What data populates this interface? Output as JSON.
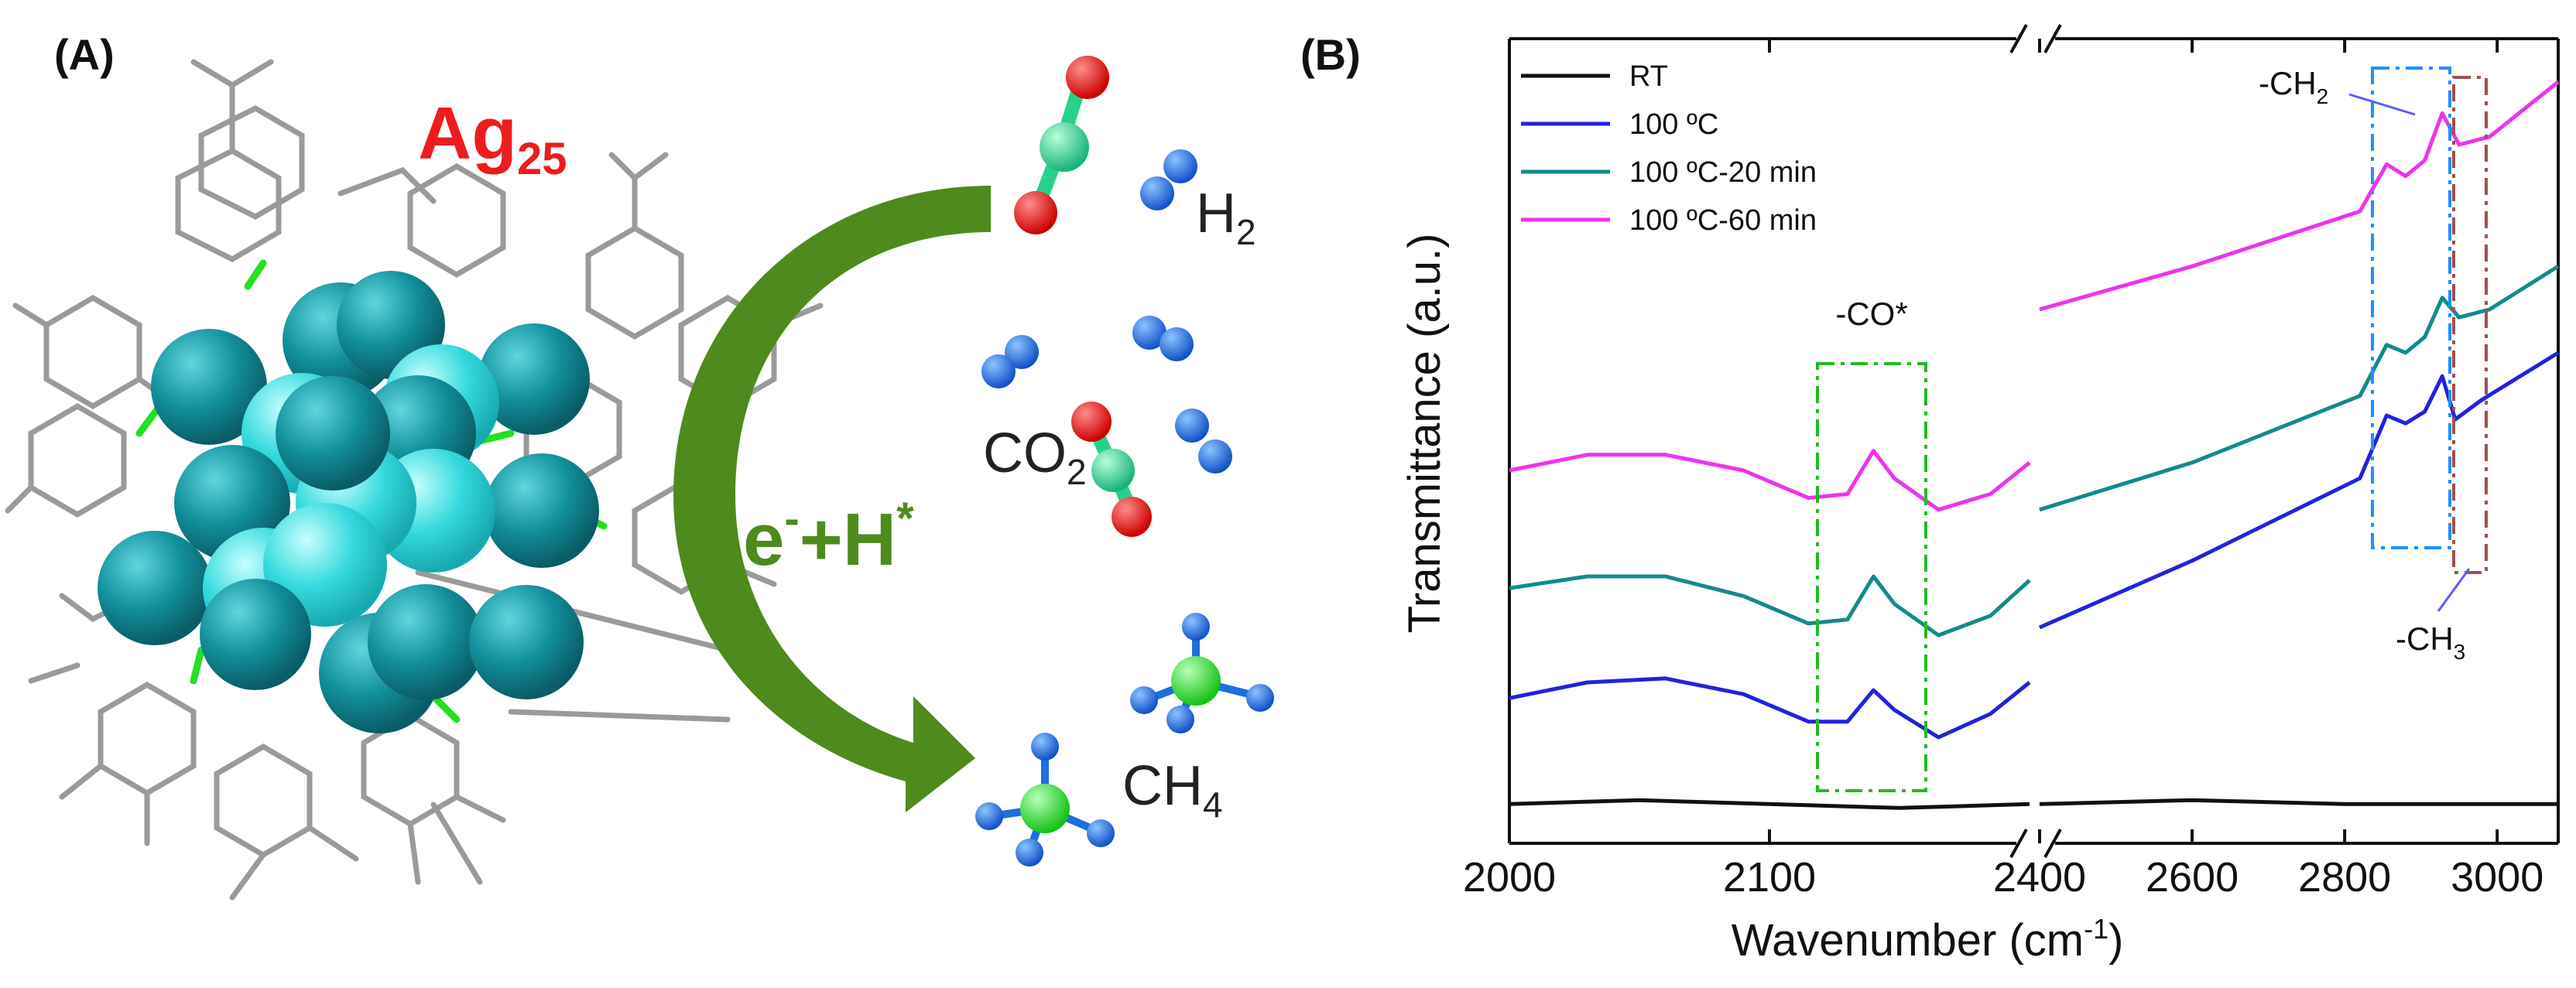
{
  "panel_a": {
    "label": "(A)",
    "cluster_label": "Ag",
    "cluster_subscript": "25",
    "arrow_label": "e",
    "arrow_label_sup1": "-",
    "arrow_label_mid": "+H",
    "arrow_label_sup2": "*",
    "h2_label": "H",
    "h2_sub": "2",
    "co2_label": "CO",
    "co2_sub": "2",
    "ch4_label": "CH",
    "ch4_sub": "4",
    "colors": {
      "ag_dark": "#14909c",
      "ag_light": "#2fd8dc",
      "ligand": "#9a9a9a",
      "arrow": "#4f8a1e",
      "oxygen": "#e01010",
      "carbon": "#28d08c",
      "hydrogen": "#1f6ee0"
    }
  },
  "panel_b": {
    "label": "(B)",
    "annotations": {
      "co": "-CO*",
      "ch2": "-CH",
      "ch2_sub": "2",
      "ch3": "-CH",
      "ch3_sub": "3"
    }
  },
  "chart_data": {
    "type": "line",
    "xlabel": "Wavenumber (cm",
    "xlabel_sup": "-1",
    "xlabel_end": ")",
    "ylabel": "Transmittance (a.u.)",
    "broken_axis": true,
    "segments": [
      {
        "xlim": [
          2000,
          2200
        ],
        "ticks": [
          2000,
          2100
        ],
        "tick_labels": [
          "2000",
          "2100"
        ]
      },
      {
        "xlim": [
          2400,
          3080
        ],
        "ticks": [
          2400,
          2600,
          2800,
          3000
        ],
        "tick_labels": [
          "2400",
          "2600",
          "2800",
          "3000"
        ]
      }
    ],
    "legend": {
      "position": "top-left",
      "entries": [
        "RT",
        "100 ºC",
        "100 ºC-20 min",
        "100 ºC-60 min"
      ]
    },
    "series": [
      {
        "name": "RT",
        "color": "#111111",
        "left": [
          [
            2000,
            0.05
          ],
          [
            2050,
            0.06
          ],
          [
            2100,
            0.05
          ],
          [
            2150,
            0.04
          ],
          [
            2200,
            0.05
          ]
        ],
        "right": [
          [
            2400,
            0.05
          ],
          [
            2600,
            0.06
          ],
          [
            2800,
            0.05
          ],
          [
            3000,
            0.05
          ],
          [
            3080,
            0.05
          ]
        ]
      },
      {
        "name": "100 ºC",
        "color": "#2222dd",
        "left": [
          [
            2000,
            0.32
          ],
          [
            2030,
            0.36
          ],
          [
            2060,
            0.37
          ],
          [
            2090,
            0.33
          ],
          [
            2115,
            0.26
          ],
          [
            2130,
            0.26
          ],
          [
            2140,
            0.34
          ],
          [
            2148,
            0.29
          ],
          [
            2165,
            0.22
          ],
          [
            2185,
            0.28
          ],
          [
            2200,
            0.36
          ]
        ],
        "right": [
          [
            2400,
            0.5
          ],
          [
            2600,
            0.67
          ],
          [
            2820,
            0.88
          ],
          [
            2855,
            1.04
          ],
          [
            2880,
            1.02
          ],
          [
            2905,
            1.05
          ],
          [
            2928,
            1.14
          ],
          [
            2945,
            1.03
          ],
          [
            2980,
            1.08
          ],
          [
            3080,
            1.2
          ]
        ]
      },
      {
        "name": "100 ºC-20 min",
        "color": "#138a8a",
        "left": [
          [
            2000,
            0.6
          ],
          [
            2030,
            0.63
          ],
          [
            2060,
            0.63
          ],
          [
            2090,
            0.58
          ],
          [
            2115,
            0.51
          ],
          [
            2130,
            0.52
          ],
          [
            2140,
            0.63
          ],
          [
            2148,
            0.56
          ],
          [
            2165,
            0.48
          ],
          [
            2185,
            0.53
          ],
          [
            2200,
            0.62
          ]
        ],
        "right": [
          [
            2400,
            0.8
          ],
          [
            2600,
            0.92
          ],
          [
            2820,
            1.09
          ],
          [
            2855,
            1.22
          ],
          [
            2880,
            1.2
          ],
          [
            2905,
            1.24
          ],
          [
            2928,
            1.34
          ],
          [
            2950,
            1.29
          ],
          [
            2990,
            1.31
          ],
          [
            3080,
            1.42
          ]
        ]
      },
      {
        "name": "100 ºC-60 min",
        "color": "#ee33ee",
        "left": [
          [
            2000,
            0.9
          ],
          [
            2030,
            0.94
          ],
          [
            2060,
            0.94
          ],
          [
            2090,
            0.9
          ],
          [
            2115,
            0.83
          ],
          [
            2130,
            0.84
          ],
          [
            2140,
            0.95
          ],
          [
            2148,
            0.88
          ],
          [
            2165,
            0.8
          ],
          [
            2185,
            0.84
          ],
          [
            2200,
            0.92
          ]
        ],
        "right": [
          [
            2400,
            1.31
          ],
          [
            2600,
            1.42
          ],
          [
            2820,
            1.56
          ],
          [
            2855,
            1.68
          ],
          [
            2880,
            1.65
          ],
          [
            2905,
            1.69
          ],
          [
            2928,
            1.81
          ],
          [
            2950,
            1.73
          ],
          [
            2990,
            1.75
          ],
          [
            3080,
            1.89
          ]
        ]
      }
    ],
    "ylim": [
      -0.05,
      2.0
    ]
  }
}
